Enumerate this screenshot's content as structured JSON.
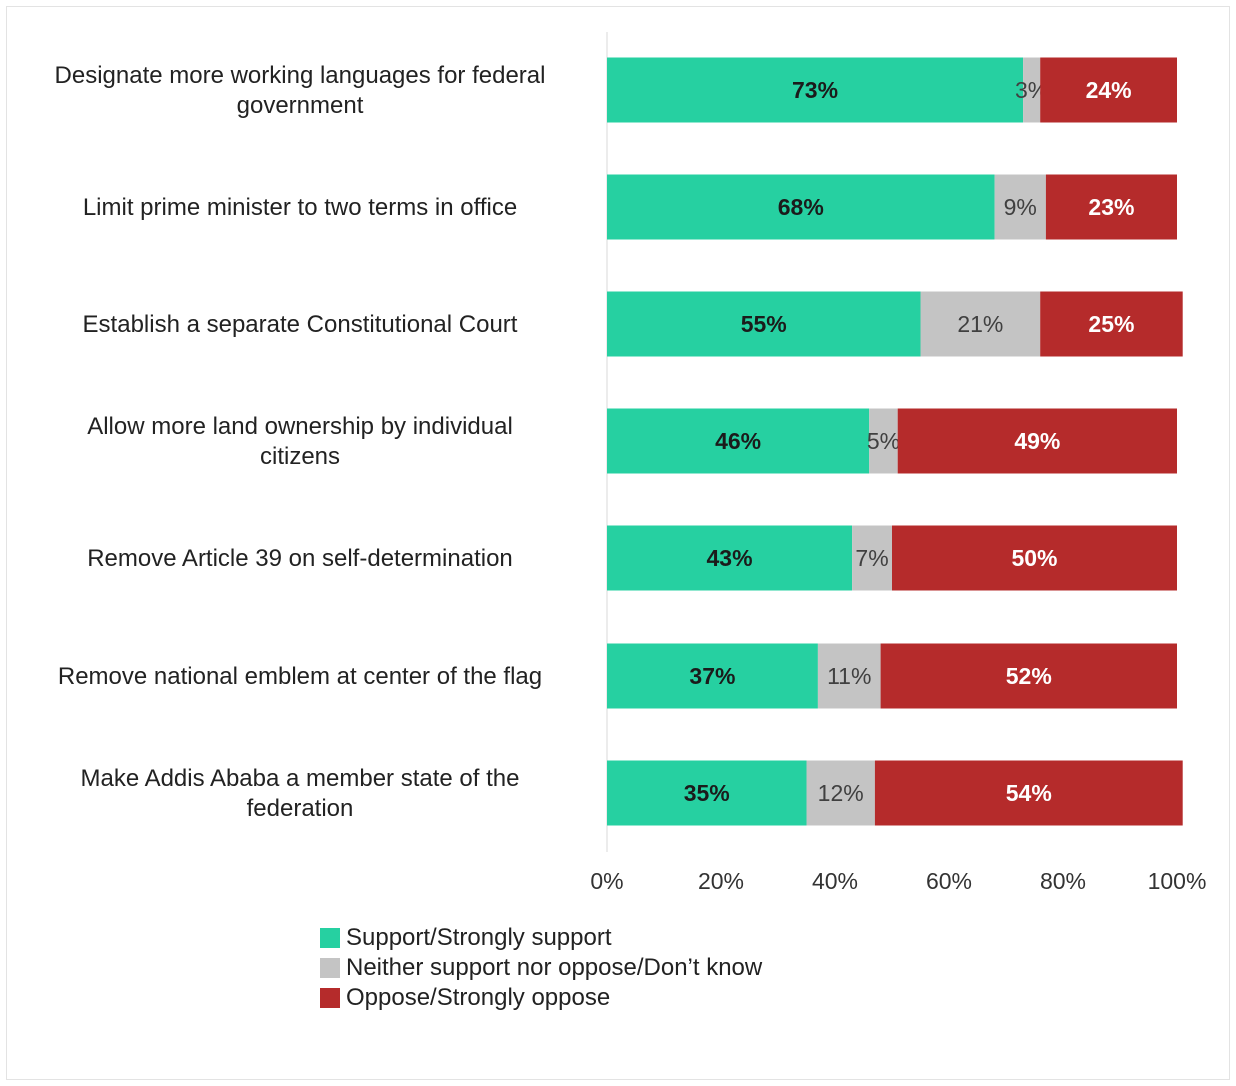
{
  "chart_data": {
    "type": "bar",
    "orientation": "horizontal",
    "stacked": true,
    "categories": [
      "Designate more working languages for federal government",
      "Limit prime minister to two terms in office",
      "Establish a separate Constitutional Court",
      "Allow more land ownership by individual citizens",
      "Remove Article 39 on self-determination",
      "Remove national emblem at center of the flag",
      "Make Addis Ababa a member state of the federation"
    ],
    "series": [
      {
        "name": "Support/Strongly support",
        "color": "#26d0a1",
        "label_color": "#1b1b1b",
        "values": [
          73,
          68,
          55,
          46,
          43,
          37,
          35
        ],
        "labels": [
          "73%",
          "68%",
          "55%",
          "46%",
          "43%",
          "37%",
          "35%"
        ]
      },
      {
        "name": "Neither support nor oppose/Don’t know",
        "color": "#c4c4c4",
        "label_color": "#404040",
        "values": [
          3,
          9,
          21,
          5,
          7,
          11,
          12
        ],
        "labels": [
          "3%",
          "9%",
          "21%",
          "5%",
          "7%",
          "11%",
          "12%"
        ]
      },
      {
        "name": "Oppose/Strongly oppose",
        "color": "#b52b2b",
        "label_color": "#ffffff",
        "values": [
          24,
          23,
          25,
          49,
          50,
          52,
          54
        ],
        "labels": [
          "24%",
          "23%",
          "25%",
          "49%",
          "50%",
          "52%",
          "54%"
        ]
      }
    ],
    "x_ticks": [
      "0%",
      "20%",
      "40%",
      "60%",
      "80%",
      "100%"
    ],
    "xlim": [
      0,
      100
    ],
    "grid": false,
    "legend_position": "bottom"
  }
}
